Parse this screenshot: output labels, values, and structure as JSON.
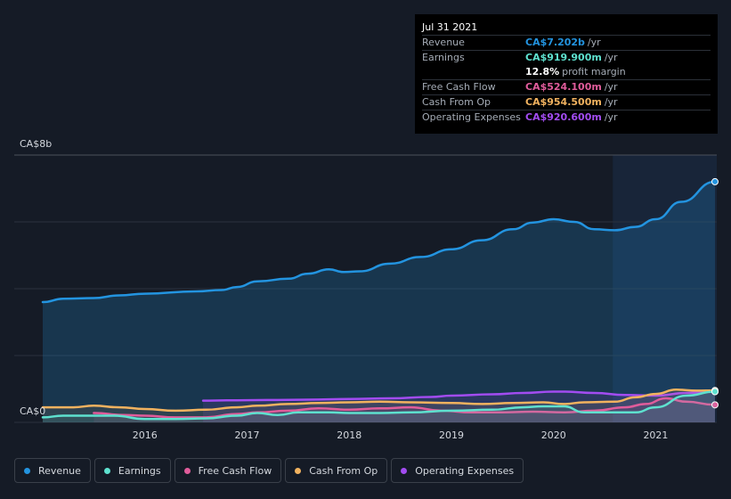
{
  "chart_data": {
    "type": "line",
    "y_axis": {
      "labels": [
        "CA$8b",
        "CA$0"
      ],
      "ylim": [
        0,
        8
      ]
    },
    "x_axis": {
      "ticks": [
        "2016",
        "2017",
        "2018",
        "2019",
        "2020",
        "2021"
      ],
      "xlim": [
        2015.0,
        2021.6
      ]
    },
    "series": [
      {
        "name": "Revenue",
        "color": "#2394e0",
        "points": [
          [
            2015.0,
            3.6
          ],
          [
            2015.2,
            3.7
          ],
          [
            2015.5,
            3.72
          ],
          [
            2015.75,
            3.8
          ],
          [
            2016.0,
            3.85
          ],
          [
            2016.5,
            3.92
          ],
          [
            2016.75,
            3.96
          ],
          [
            2016.9,
            4.05
          ],
          [
            2017.1,
            4.22
          ],
          [
            2017.4,
            4.3
          ],
          [
            2017.6,
            4.45
          ],
          [
            2017.8,
            4.58
          ],
          [
            2017.95,
            4.5
          ],
          [
            2018.1,
            4.52
          ],
          [
            2018.4,
            4.75
          ],
          [
            2018.7,
            4.95
          ],
          [
            2019.0,
            5.18
          ],
          [
            2019.3,
            5.45
          ],
          [
            2019.6,
            5.78
          ],
          [
            2019.8,
            5.98
          ],
          [
            2020.0,
            6.08
          ],
          [
            2020.2,
            6.0
          ],
          [
            2020.4,
            5.78
          ],
          [
            2020.6,
            5.75
          ],
          [
            2020.8,
            5.85
          ],
          [
            2021.0,
            6.08
          ],
          [
            2021.25,
            6.6
          ],
          [
            2021.58,
            7.202
          ]
        ]
      },
      {
        "name": "Earnings",
        "color": "#5ee1cf",
        "points": [
          [
            2015.0,
            0.15
          ],
          [
            2015.2,
            0.2
          ],
          [
            2015.5,
            0.2
          ],
          [
            2015.7,
            0.2
          ],
          [
            2016.0,
            0.1
          ],
          [
            2016.3,
            0.1
          ],
          [
            2016.6,
            0.12
          ],
          [
            2016.9,
            0.2
          ],
          [
            2017.1,
            0.28
          ],
          [
            2017.3,
            0.22
          ],
          [
            2017.5,
            0.3
          ],
          [
            2017.8,
            0.3
          ],
          [
            2018.0,
            0.28
          ],
          [
            2018.3,
            0.28
          ],
          [
            2018.6,
            0.3
          ],
          [
            2019.0,
            0.35
          ],
          [
            2019.4,
            0.38
          ],
          [
            2019.7,
            0.45
          ],
          [
            2019.9,
            0.48
          ],
          [
            2020.1,
            0.48
          ],
          [
            2020.3,
            0.3
          ],
          [
            2020.6,
            0.3
          ],
          [
            2020.8,
            0.3
          ],
          [
            2021.0,
            0.45
          ],
          [
            2021.3,
            0.8
          ],
          [
            2021.58,
            0.9199
          ]
        ]
      },
      {
        "name": "Free Cash Flow",
        "color": "#e05c9b",
        "points": [
          [
            2015.5,
            0.28
          ],
          [
            2015.8,
            0.22
          ],
          [
            2016.0,
            0.2
          ],
          [
            2016.3,
            0.15
          ],
          [
            2016.6,
            0.15
          ],
          [
            2016.9,
            0.25
          ],
          [
            2017.1,
            0.3
          ],
          [
            2017.4,
            0.35
          ],
          [
            2017.7,
            0.42
          ],
          [
            2018.0,
            0.38
          ],
          [
            2018.3,
            0.42
          ],
          [
            2018.6,
            0.45
          ],
          [
            2018.9,
            0.35
          ],
          [
            2019.2,
            0.3
          ],
          [
            2019.5,
            0.3
          ],
          [
            2019.8,
            0.32
          ],
          [
            2020.1,
            0.3
          ],
          [
            2020.4,
            0.35
          ],
          [
            2020.7,
            0.45
          ],
          [
            2020.9,
            0.55
          ],
          [
            2021.1,
            0.72
          ],
          [
            2021.3,
            0.62
          ],
          [
            2021.58,
            0.5241
          ]
        ]
      },
      {
        "name": "Cash From Op",
        "color": "#f1b25f",
        "points": [
          [
            2015.0,
            0.45
          ],
          [
            2015.3,
            0.45
          ],
          [
            2015.5,
            0.5
          ],
          [
            2015.75,
            0.45
          ],
          [
            2016.0,
            0.4
          ],
          [
            2016.3,
            0.35
          ],
          [
            2016.6,
            0.38
          ],
          [
            2016.9,
            0.45
          ],
          [
            2017.1,
            0.5
          ],
          [
            2017.4,
            0.55
          ],
          [
            2017.7,
            0.58
          ],
          [
            2018.0,
            0.6
          ],
          [
            2018.3,
            0.62
          ],
          [
            2018.6,
            0.6
          ],
          [
            2019.0,
            0.58
          ],
          [
            2019.3,
            0.55
          ],
          [
            2019.6,
            0.58
          ],
          [
            2019.9,
            0.6
          ],
          [
            2020.1,
            0.55
          ],
          [
            2020.3,
            0.6
          ],
          [
            2020.6,
            0.62
          ],
          [
            2020.8,
            0.75
          ],
          [
            2021.0,
            0.85
          ],
          [
            2021.2,
            0.98
          ],
          [
            2021.4,
            0.95
          ],
          [
            2021.58,
            0.9545
          ]
        ]
      },
      {
        "name": "Operating Expenses",
        "color": "#a24cf1",
        "points": [
          [
            2016.57,
            0.65
          ],
          [
            2016.8,
            0.66
          ],
          [
            2017.2,
            0.67
          ],
          [
            2017.6,
            0.68
          ],
          [
            2018.0,
            0.7
          ],
          [
            2018.4,
            0.72
          ],
          [
            2018.8,
            0.76
          ],
          [
            2019.0,
            0.8
          ],
          [
            2019.4,
            0.84
          ],
          [
            2019.7,
            0.88
          ],
          [
            2020.0,
            0.92
          ],
          [
            2020.1,
            0.92
          ],
          [
            2020.4,
            0.88
          ],
          [
            2020.7,
            0.82
          ],
          [
            2021.0,
            0.8
          ],
          [
            2021.3,
            0.88
          ],
          [
            2021.58,
            0.9206
          ]
        ]
      }
    ],
    "highlight_from": 2020.58
  },
  "tooltip": {
    "date": "Jul 31 2021",
    "rows": [
      {
        "label": "Revenue",
        "value": "CA$7.202b",
        "unit": "/yr",
        "color": "#2394e0"
      },
      {
        "label": "Earnings",
        "value": "CA$919.900m",
        "unit": "/yr",
        "color": "#5ee1cf"
      },
      {
        "label": "",
        "value": "12.8%",
        "unit": "profit margin",
        "color": "#ffffff"
      },
      {
        "label": "Free Cash Flow",
        "value": "CA$524.100m",
        "unit": "/yr",
        "color": "#e05c9b"
      },
      {
        "label": "Cash From Op",
        "value": "CA$954.500m",
        "unit": "/yr",
        "color": "#f1b25f"
      },
      {
        "label": "Operating Expenses",
        "value": "CA$920.600m",
        "unit": "/yr",
        "color": "#a24cf1"
      }
    ]
  },
  "legend": [
    {
      "label": "Revenue",
      "color": "#2394e0"
    },
    {
      "label": "Earnings",
      "color": "#5ee1cf"
    },
    {
      "label": "Free Cash Flow",
      "color": "#e05c9b"
    },
    {
      "label": "Cash From Op",
      "color": "#f1b25f"
    },
    {
      "label": "Operating Expenses",
      "color": "#a24cf1"
    }
  ]
}
